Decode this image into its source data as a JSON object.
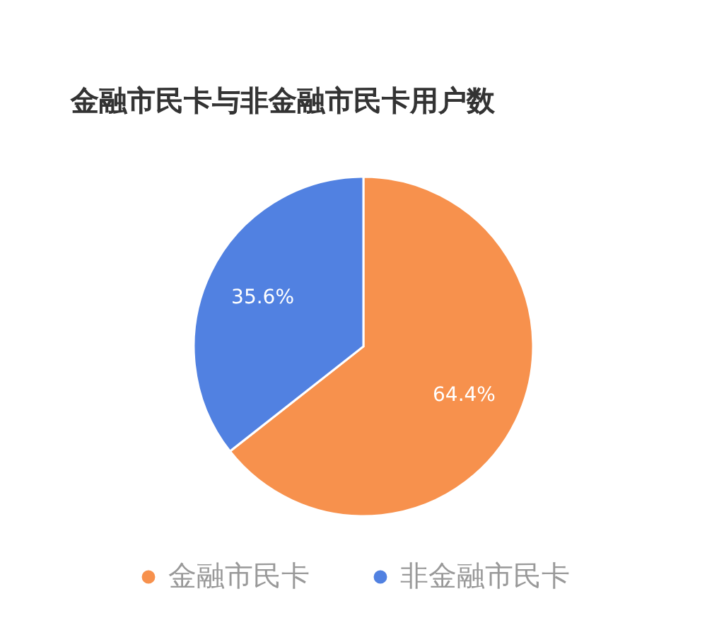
{
  "chart_data": {
    "type": "pie",
    "title": "金融市民卡与非金融市民卡用户数",
    "categories": [
      "金融市民卡",
      "非金融市民卡"
    ],
    "values": [
      64.4,
      35.6
    ],
    "colors": [
      "#f7914d",
      "#5181e1"
    ],
    "value_labels": [
      "64.4%",
      "35.6%"
    ],
    "legend": "bottom"
  }
}
